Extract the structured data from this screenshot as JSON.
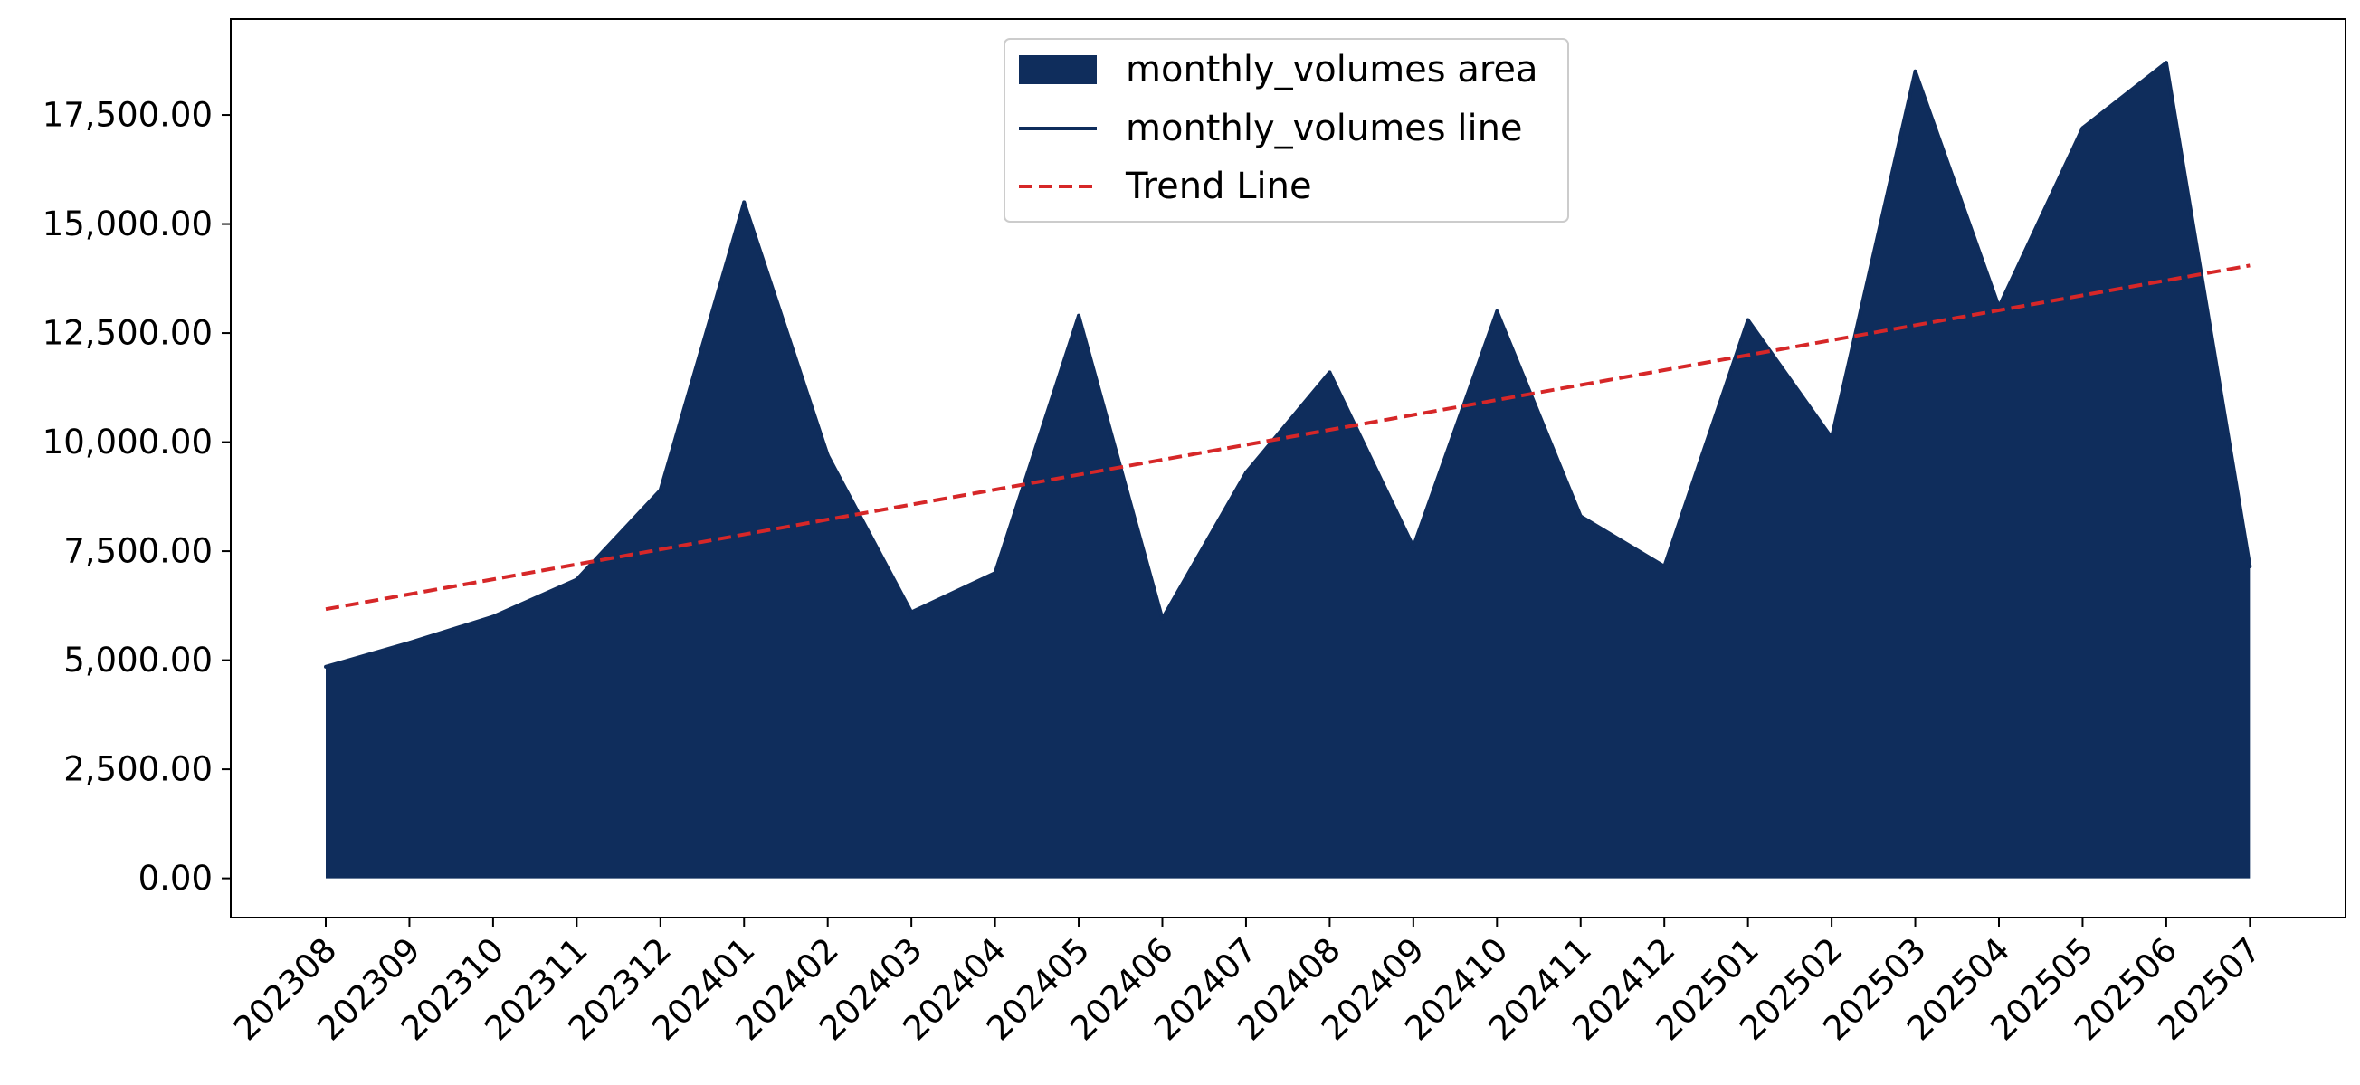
{
  "chart_data": {
    "type": "area",
    "title": "",
    "xlabel": "",
    "ylabel": "",
    "categories": [
      "202308",
      "202309",
      "202310",
      "202311",
      "202312",
      "202401",
      "202402",
      "202403",
      "202404",
      "202405",
      "202406",
      "202407",
      "202408",
      "202409",
      "202410",
      "202411",
      "202412",
      "202501",
      "202502",
      "202503",
      "202504",
      "202505",
      "202506",
      "202507"
    ],
    "series": [
      {
        "name": "monthly_volumes area",
        "kind": "area",
        "color": "#0f2d5c",
        "values": [
          4850,
          5400,
          6000,
          6850,
          8900,
          15500,
          9700,
          6100,
          7000,
          12900,
          5950,
          9300,
          11600,
          7600,
          13000,
          8300,
          7150,
          12800,
          10100,
          18500,
          13100,
          17200,
          18700,
          7150
        ]
      },
      {
        "name": "monthly_volumes line",
        "kind": "line",
        "color": "#0f2d5c",
        "values": [
          4850,
          5400,
          6000,
          6850,
          8900,
          15500,
          9700,
          6100,
          7000,
          12900,
          5950,
          9300,
          11600,
          7600,
          13000,
          8300,
          7150,
          12800,
          10100,
          18500,
          13100,
          17200,
          18700,
          7150
        ]
      },
      {
        "name": "Trend Line",
        "kind": "trend",
        "color": "#d62728",
        "start": 6170,
        "end": 14050
      }
    ],
    "ylim": [
      -900,
      19700
    ],
    "yticks": [
      0,
      2500,
      5000,
      7500,
      10000,
      12500,
      15000,
      17500
    ],
    "ytick_labels": [
      "0.00",
      "2,500.00",
      "5,000.00",
      "7,500.00",
      "10,000.00",
      "12,500.00",
      "15,000.00",
      "17,500.00"
    ],
    "grid": false,
    "legend_position": "top-center"
  }
}
